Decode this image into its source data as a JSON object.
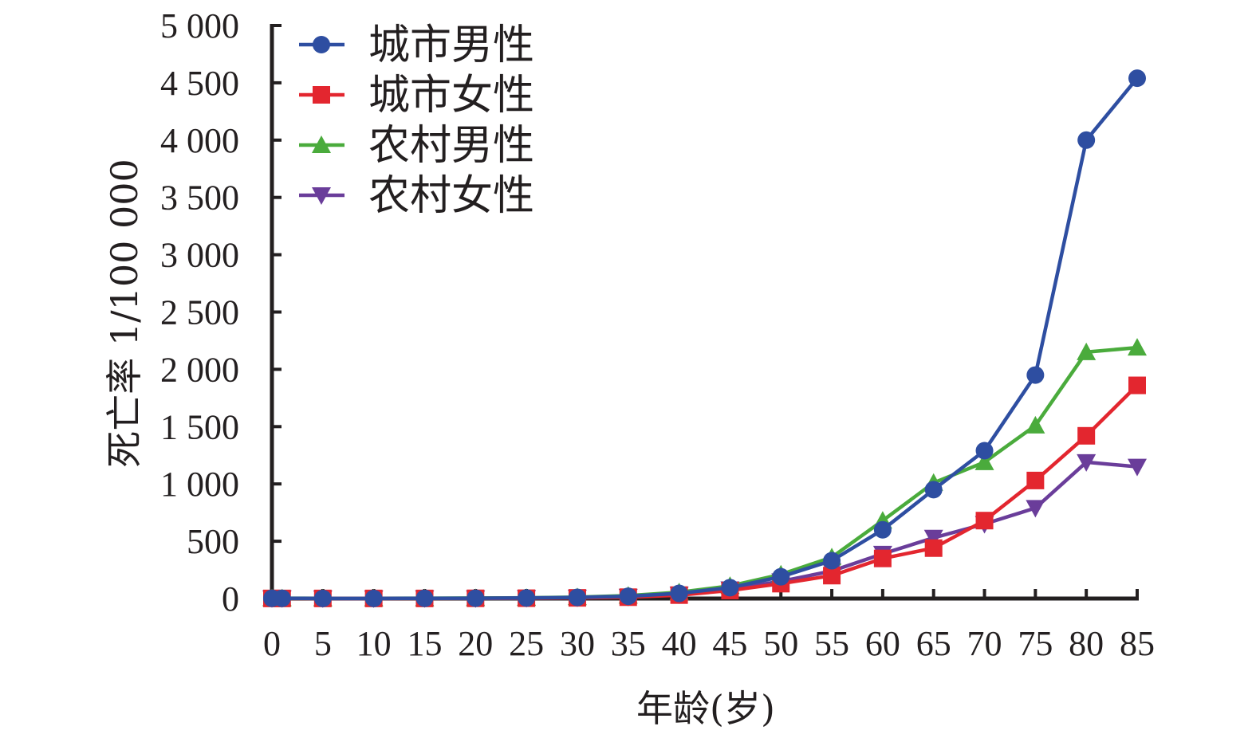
{
  "chart_data": {
    "type": "line",
    "title": "",
    "xlabel": "年龄(岁)",
    "ylabel": "死亡率 1/100 000",
    "x": [
      0,
      1,
      5,
      10,
      15,
      20,
      25,
      30,
      35,
      40,
      45,
      50,
      55,
      60,
      65,
      70,
      75,
      80,
      85
    ],
    "xticks": [
      "0",
      "5",
      "10",
      "15",
      "20",
      "25",
      "30",
      "35",
      "40",
      "45",
      "50",
      "55",
      "60",
      "65",
      "70",
      "75",
      "80",
      "85"
    ],
    "yticks": [
      "0",
      "500",
      "1 000",
      "1 500",
      "2 000",
      "2 500",
      "3 000",
      "3 500",
      "4 000",
      "4 500",
      "5 000"
    ],
    "xlim": [
      0,
      85
    ],
    "ylim": [
      0,
      5000
    ],
    "grid": false,
    "legend_position": "top-left",
    "series": [
      {
        "name": "城市男性",
        "color": "#2e4ea1",
        "marker": "circle",
        "values": [
          2,
          2,
          1,
          1,
          2,
          3,
          5,
          10,
          20,
          45,
          95,
          190,
          330,
          600,
          950,
          1290,
          1950,
          4000,
          4540
        ]
      },
      {
        "name": "城市女性",
        "color": "#e3262f",
        "marker": "square",
        "values": [
          1,
          1,
          1,
          1,
          1,
          2,
          3,
          6,
          12,
          30,
          70,
          130,
          200,
          350,
          440,
          680,
          1030,
          1420,
          1860
        ]
      },
      {
        "name": "农村男性",
        "color": "#4aab3c",
        "marker": "triangle-up",
        "values": [
          3,
          3,
          2,
          2,
          3,
          4,
          6,
          12,
          25,
          55,
          110,
          210,
          360,
          680,
          1010,
          1190,
          1510,
          2150,
          2190
        ]
      },
      {
        "name": "农村女性",
        "color": "#6a3d9a",
        "marker": "triangle-down",
        "values": [
          2,
          2,
          1,
          1,
          2,
          2,
          4,
          8,
          15,
          35,
          80,
          150,
          240,
          390,
          530,
          650,
          790,
          1190,
          1150
        ]
      }
    ]
  }
}
